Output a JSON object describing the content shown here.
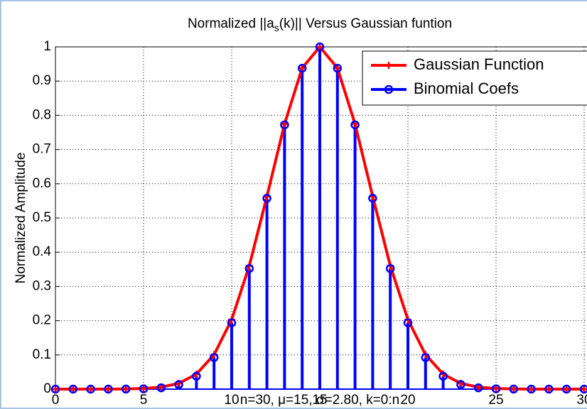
{
  "chart_data": {
    "type": "line",
    "title": [
      "Normalized ||a",
      "s",
      "(k)|| Versus Gaussian funtion"
    ],
    "xlabel": "n=30, μ=15, σ=2.80, k=0:n",
    "ylabel": "Normalized Amplitude",
    "x": [
      0,
      1,
      2,
      3,
      4,
      5,
      6,
      7,
      8,
      9,
      10,
      11,
      12,
      13,
      14,
      15,
      16,
      17,
      18,
      19,
      20,
      21,
      22,
      23,
      24,
      25,
      26,
      27,
      28,
      29,
      30
    ],
    "series": [
      {
        "name": "Gaussian Function",
        "color": "#ff0000",
        "type": "line",
        "values": [
          0,
          0,
          0,
          0,
          0.0005,
          0.0017,
          0.0057,
          0.0169,
          0.0439,
          0.1007,
          0.2031,
          0.3604,
          0.5633,
          0.7748,
          0.9382,
          1,
          0.9382,
          0.7748,
          0.5633,
          0.3604,
          0.2031,
          0.1007,
          0.0439,
          0.0169,
          0.0057,
          0.0017,
          0.0005,
          0,
          0,
          0,
          0
        ]
      },
      {
        "name": "Binomial Coefs",
        "color": "#0000ff",
        "type": "stem",
        "values": [
          0,
          0,
          0,
          0,
          0.0002,
          0.0009,
          0.0038,
          0.0131,
          0.0377,
          0.0922,
          0.1937,
          0.3522,
          0.5576,
          0.7721,
          0.9375,
          1,
          0.9375,
          0.7721,
          0.5576,
          0.3522,
          0.1937,
          0.0922,
          0.0377,
          0.0131,
          0.0038,
          0.0009,
          0.0002,
          0,
          0,
          0,
          0
        ]
      }
    ],
    "xlim": [
      0,
      30
    ],
    "ylim": [
      0,
      1
    ],
    "xticks": [
      0,
      5,
      10,
      15,
      20,
      25,
      30
    ],
    "yticks": [
      0,
      0.1,
      0.2,
      0.3,
      0.4,
      0.5,
      0.6,
      0.7,
      0.8,
      0.9,
      1
    ],
    "grid": true,
    "legend": "top-right"
  }
}
